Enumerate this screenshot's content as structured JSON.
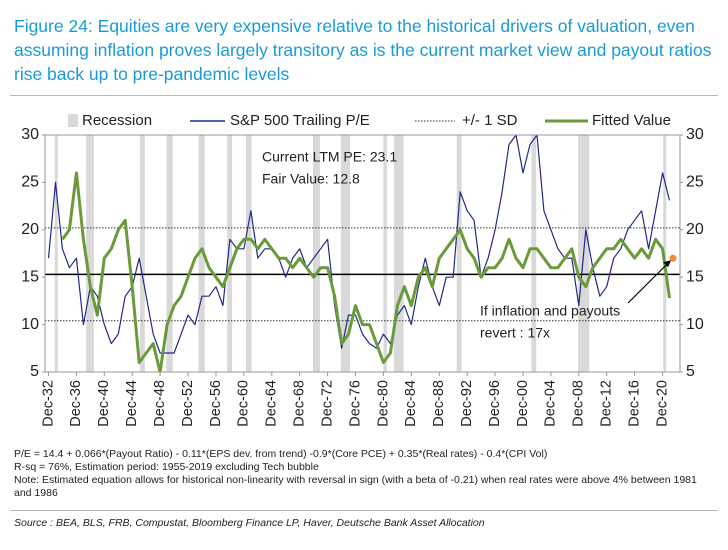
{
  "chart_data": {
    "type": "line",
    "title": "Figure 24: Equities are very expensive relative to the historical drivers of valuation, even assuming inflation proves largely transitory as is the current market view and payout ratios rise back up to pre-pandemic levels",
    "x": [
      1932,
      1933,
      1934,
      1935,
      1936,
      1937,
      1938,
      1939,
      1940,
      1941,
      1942,
      1943,
      1944,
      1945,
      1946,
      1947,
      1948,
      1949,
      1950,
      1951,
      1952,
      1953,
      1954,
      1955,
      1956,
      1957,
      1958,
      1959,
      1960,
      1961,
      1962,
      1963,
      1964,
      1965,
      1966,
      1967,
      1968,
      1969,
      1970,
      1971,
      1972,
      1973,
      1974,
      1975,
      1976,
      1977,
      1978,
      1979,
      1980,
      1981,
      1982,
      1983,
      1984,
      1985,
      1986,
      1987,
      1988,
      1989,
      1990,
      1991,
      1992,
      1993,
      1994,
      1995,
      1996,
      1997,
      1998,
      1999,
      2000,
      2001,
      2002,
      2003,
      2004,
      2005,
      2006,
      2007,
      2008,
      2009,
      2010,
      2011,
      2012,
      2013,
      2014,
      2015,
      2016,
      2017,
      2018,
      2019,
      2020,
      2021
    ],
    "series": [
      {
        "name": "S&P 500 Trailing P/E",
        "color": "#1f2a8a",
        "values": [
          17,
          25,
          18,
          16,
          17,
          10,
          14,
          13,
          10,
          8,
          9,
          13,
          14,
          17,
          13,
          9,
          7,
          7,
          7,
          9,
          11,
          10,
          13,
          13,
          14,
          12,
          19,
          18,
          18,
          22,
          17,
          18,
          18,
          17,
          15,
          17,
          18,
          16,
          17,
          18,
          19,
          12,
          7.5,
          11,
          11,
          9,
          8,
          7.5,
          9,
          8,
          11,
          12,
          10,
          14,
          17,
          14,
          12,
          15,
          15,
          24,
          22,
          21,
          15,
          17,
          20,
          24,
          29,
          30,
          26,
          29,
          30,
          22,
          20,
          18,
          17,
          17,
          12,
          20,
          16,
          13,
          14,
          17,
          18,
          20,
          21,
          22,
          18,
          22,
          26,
          23.1
        ]
      },
      {
        "name": "Fitted Value",
        "color": "#6b9a3a",
        "values": [
          null,
          null,
          19,
          20,
          26,
          19,
          14,
          11,
          17,
          18,
          20,
          21,
          14,
          6,
          7,
          8,
          5,
          10,
          12,
          13,
          15,
          17,
          18,
          16,
          15,
          14,
          16,
          18,
          19,
          19,
          18,
          19,
          18,
          17,
          17,
          16,
          17,
          16,
          15,
          16,
          16,
          13,
          8,
          9,
          12,
          10,
          10,
          8,
          6,
          7,
          12,
          14,
          12,
          15,
          16,
          14,
          17,
          18,
          19,
          20,
          18,
          17,
          15,
          16,
          16,
          17,
          19,
          17,
          16,
          18,
          18,
          17,
          16,
          16,
          17,
          18,
          15,
          14,
          16,
          17,
          18,
          18,
          19,
          18,
          17,
          18,
          17,
          19,
          18,
          12.8
        ]
      }
    ],
    "recession_name": "Recession",
    "recessions": [
      [
        1932.9,
        1933.2
      ],
      [
        1937.4,
        1938.5
      ],
      [
        1945.1,
        1945.8
      ],
      [
        1948.9,
        1949.8
      ],
      [
        1953.5,
        1954.4
      ],
      [
        1957.6,
        1958.3
      ],
      [
        1960.3,
        1961.1
      ],
      [
        1969.9,
        1970.9
      ],
      [
        1973.9,
        1975.2
      ],
      [
        1980.0,
        1980.5
      ],
      [
        1981.5,
        1982.9
      ],
      [
        1990.5,
        1991.2
      ],
      [
        2001.2,
        2001.9
      ],
      [
        2007.9,
        2009.5
      ],
      [
        2020.1,
        2020.4
      ]
    ],
    "sd_name": "+/- 1 SD",
    "mean": 15.3,
    "sd_lines": [
      20.2,
      10.4
    ],
    "projection": {
      "x": 2021.5,
      "y": 17,
      "color": "#f28c3a"
    },
    "annotations": [
      "Current LTM PE: 23.1",
      "Fair Value: 12.8",
      "If inflation and payouts",
      "revert : 17x"
    ],
    "xlim": [
      1931.5,
      2022.5
    ],
    "ylim": [
      5,
      30
    ],
    "yticks": [
      5,
      10,
      15,
      20,
      25,
      30
    ],
    "y2lim": [
      5,
      30
    ],
    "y2ticks": [
      5,
      10,
      15,
      20,
      25,
      30
    ],
    "xticks": [
      {
        "value": 1932,
        "label": "Dec-32"
      },
      {
        "value": 1936,
        "label": "Dec-36"
      },
      {
        "value": 1940,
        "label": "Dec-40"
      },
      {
        "value": 1944,
        "label": "Dec-44"
      },
      {
        "value": 1948,
        "label": "Dec-48"
      },
      {
        "value": 1952,
        "label": "Dec-52"
      },
      {
        "value": 1956,
        "label": "Dec-56"
      },
      {
        "value": 1960,
        "label": "Dec-60"
      },
      {
        "value": 1964,
        "label": "Dec-64"
      },
      {
        "value": 1968,
        "label": "Dec-68"
      },
      {
        "value": 1972,
        "label": "Dec-72"
      },
      {
        "value": 1976,
        "label": "Dec-76"
      },
      {
        "value": 1980,
        "label": "Dec-80"
      },
      {
        "value": 1984,
        "label": "Dec-84"
      },
      {
        "value": 1988,
        "label": "Dec-88"
      },
      {
        "value": 1992,
        "label": "Dec-92"
      },
      {
        "value": 1996,
        "label": "Dec-96"
      },
      {
        "value": 2000,
        "label": "Dec-00"
      },
      {
        "value": 2004,
        "label": "Dec-04"
      },
      {
        "value": 2008,
        "label": "Dec-08"
      },
      {
        "value": 2012,
        "label": "Dec-12"
      },
      {
        "value": 2016,
        "label": "Dec-16"
      },
      {
        "value": 2020,
        "label": "Dec-20"
      }
    ],
    "notes": [
      "P/E = 14.4 + 0.066*(Payout Ratio) - 0.11*(EPS dev. from trend) -0.9*(Core PCE) + 0.35*(Real rates) - 0.4*(CPI Vol)",
      "R-sq = 76%, Estimation period: 1955-2019 excluding Tech bubble",
      "Note: Estimated equation allows for historical non-linearity with reversal in sign (with a beta of -0.21) when real rates were above 4% between 1981 and 1986"
    ],
    "source": "Source : BEA, BLS, FRB, Compustat, Bloomberg Finance LP, Haver, Deutsche Bank Asset Allocation"
  }
}
